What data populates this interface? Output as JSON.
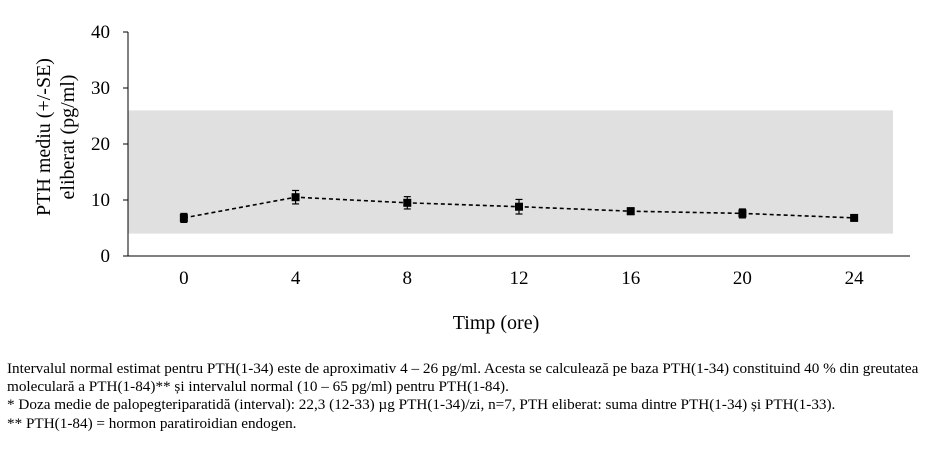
{
  "chart_data": {
    "type": "line",
    "xlabel": "Timp (ore)",
    "ylabel_lines": [
      "PTH mediu (+/-SE)",
      "eliberat (pg/ml)"
    ],
    "x": [
      0,
      4,
      8,
      12,
      16,
      20,
      24
    ],
    "x_ticks": [
      "0",
      "4",
      "8",
      "12",
      "16",
      "20",
      "24"
    ],
    "y_ticks": [
      "0",
      "10",
      "20",
      "30",
      "40"
    ],
    "ylim": [
      0,
      40
    ],
    "xlim": [
      -2,
      26
    ],
    "series": [
      {
        "values": [
          6.8,
          10.5,
          9.5,
          8.8,
          8.0,
          7.6,
          6.8
        ],
        "errors": [
          0.8,
          1.2,
          1.1,
          1.3,
          0.6,
          0.8,
          0.5
        ],
        "color": "#000000",
        "line_style": "dashed",
        "marker": "square"
      }
    ],
    "normal_range": {
      "low": 4,
      "high": 26,
      "color": "#e0e0e0"
    },
    "grid": false,
    "legend": "none"
  },
  "notes": {
    "line1": "Intervalul normal estimat pentru PTH(1-34) este de aproximativ 4 – 26 pg/ml. Acesta se calculează pe baza PTH(1-34) constituind 40 % din greutatea moleculară a PTH(1-84)** și intervalul normal (10 – 65 pg/ml) pentru PTH(1-84).",
    "line2": "* Doza medie de palopegteriparatidă (interval): 22,3 (12-33) µg PTH(1-34)/zi, n=7, PTH eliberat: suma dintre PTH(1-34) și PTH(1-33).",
    "line3": "** PTH(1-84) = hormon paratiroidian endogen."
  }
}
